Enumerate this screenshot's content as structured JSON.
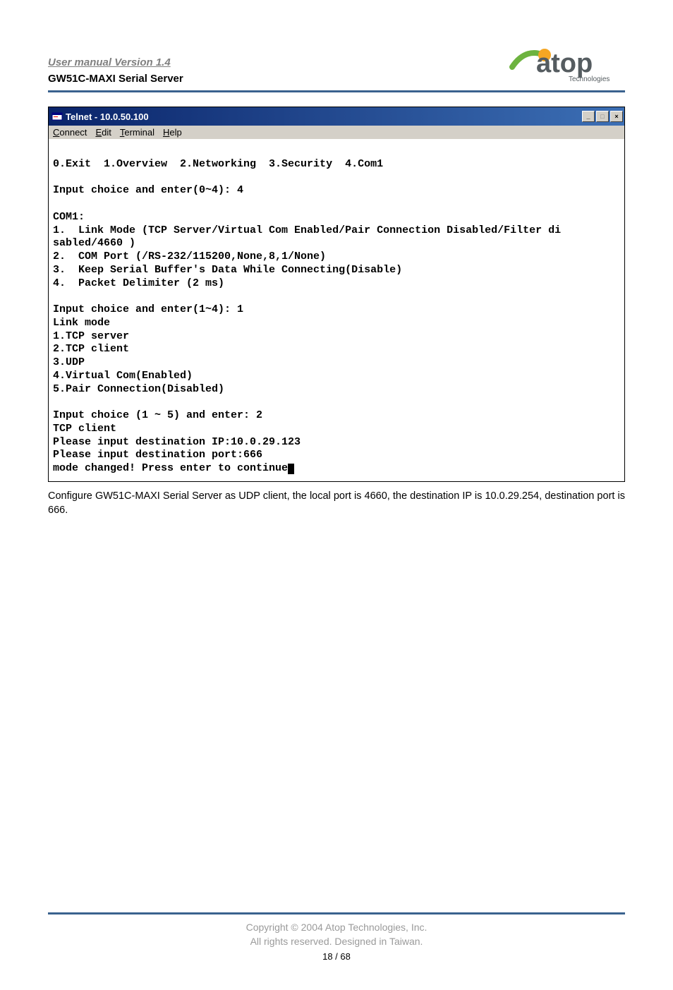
{
  "header": {
    "manual_version": "User manual Version 1.4",
    "product_name": "GW51C-MAXI Serial Server",
    "logo_text": "atop",
    "logo_sub": "Technologies",
    "logo_colors": {
      "a_dot": "#f5a623",
      "text": "#555c60",
      "sub": "#555c60",
      "swoosh": "#6db33f"
    }
  },
  "telnet": {
    "title": "Telnet - 10.0.50.100",
    "menus": [
      "Connect",
      "Edit",
      "Terminal",
      "Help"
    ],
    "menu_underlines": [
      "C",
      "E",
      "T",
      "H"
    ],
    "lines": [
      "",
      "0.Exit  1.Overview  2.Networking  3.Security  4.Com1",
      "",
      "Input choice and enter(0~4): 4",
      "",
      "COM1:",
      "1.  Link Mode (TCP Server/Virtual Com Enabled/Pair Connection Disabled/Filter di",
      "sabled/4660 )",
      "2.  COM Port (/RS-232/115200,None,8,1/None)",
      "3.  Keep Serial Buffer's Data While Connecting(Disable)",
      "4.  Packet Delimiter (2 ms)",
      "",
      "Input choice and enter(1~4): 1",
      "Link mode",
      "1.TCP server",
      "2.TCP client",
      "3.UDP",
      "4.Virtual Com(Enabled)",
      "5.Pair Connection(Disabled)",
      "",
      "Input choice (1 ~ 5) and enter: 2",
      "TCP client",
      "Please input destination IP:10.0.29.123",
      "Please input destination port:666",
      "mode changed! Press enter to continue"
    ],
    "cursor_after_last": true,
    "colors": {
      "titlebar_start": "#0a246a",
      "titlebar_end": "#3c6fb5",
      "title_text": "#ffffff",
      "menubar_bg": "#d4d0c8",
      "terminal_bg": "#ffffff",
      "terminal_fg": "#000000"
    }
  },
  "body": {
    "paragraph": "Configure GW51C-MAXI Serial Server as UDP client, the local port is 4660, the destination IP is 10.0.29.254, destination port is 666."
  },
  "footer": {
    "copyright": "Copyright © 2004 Atop Technologies, Inc.",
    "rights": "All rights reserved. Designed in Taiwan.",
    "page": "18 / 68",
    "rule_color": "#3a628e",
    "text_color": "#9a9a9a"
  }
}
